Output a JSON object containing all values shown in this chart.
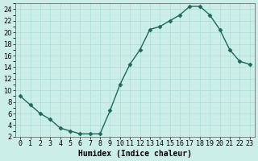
{
  "x": [
    0,
    1,
    2,
    3,
    4,
    5,
    6,
    7,
    8,
    9,
    10,
    11,
    12,
    13,
    14,
    15,
    16,
    17,
    18,
    19,
    20,
    21,
    22,
    23
  ],
  "y": [
    9,
    7.5,
    6,
    5,
    3.5,
    3,
    2.5,
    2.5,
    2.5,
    6.5,
    11,
    14.5,
    17,
    20.5,
    21,
    22,
    23,
    24.5,
    24.5,
    23,
    20.5,
    17,
    15,
    14.5
  ],
  "line_color": "#1a6b5a",
  "marker": "D",
  "marker_size": 2.5,
  "bg_color": "#cceee8",
  "grid_major_color": "#aaddd5",
  "grid_minor_color": "#bbece6",
  "xlabel": "Humidex (Indice chaleur)",
  "xlim": [
    -0.5,
    23.5
  ],
  "ylim": [
    2,
    25
  ],
  "yticks": [
    2,
    4,
    6,
    8,
    10,
    12,
    14,
    16,
    18,
    20,
    22,
    24
  ],
  "xtick_labels": [
    "0",
    "1",
    "2",
    "3",
    "4",
    "5",
    "6",
    "7",
    "8",
    "9",
    "10",
    "11",
    "12",
    "13",
    "14",
    "15",
    "16",
    "17",
    "18",
    "19",
    "20",
    "21",
    "22",
    "23"
  ],
  "tick_fontsize": 6,
  "xlabel_fontsize": 7
}
